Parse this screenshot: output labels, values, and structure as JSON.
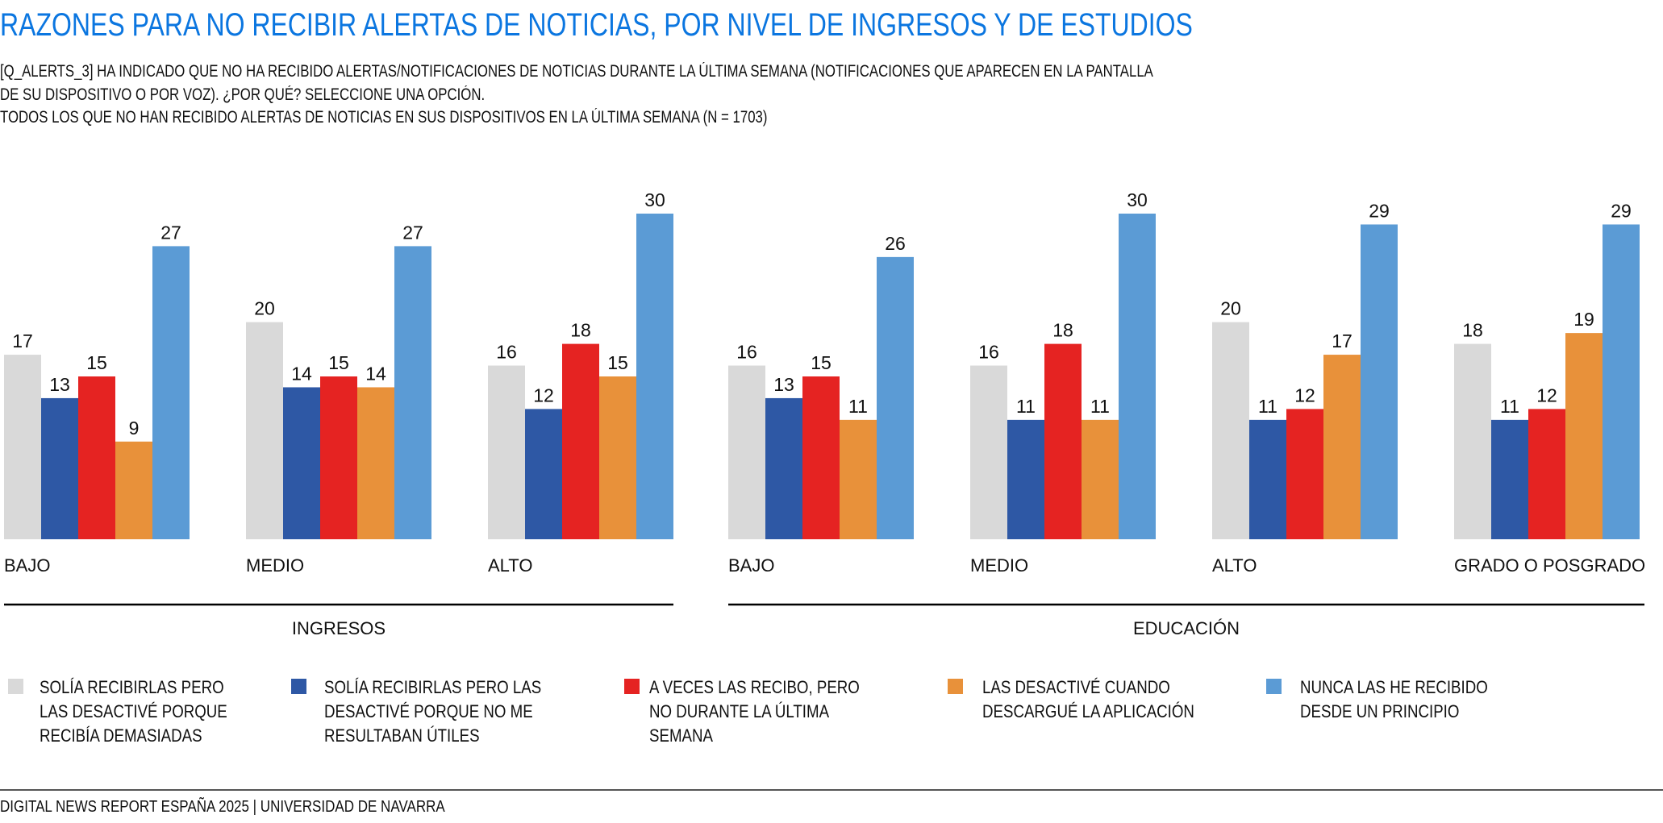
{
  "title": "RAZONES PARA NO RECIBIR ALERTAS DE NOTICIAS, POR NIVEL DE INGRESOS Y DE ESTUDIOS",
  "subtitle_lines": [
    "[Q_ALERTS_3] HA INDICADO QUE NO HA RECIBIDO ALERTAS/NOTIFICACIONES DE NOTICIAS DURANTE LA ÚLTIMA SEMANA (NOTIFICACIONES QUE APARECEN EN LA PANTALLA",
    "DE SU DISPOSITIVO O POR VOZ). ¿POR QUÉ? SELECCIONE UNA OPCIÓN.",
    "TODOS LOS QUE NO HAN RECIBIDO ALERTAS DE NOTICIAS EN SUS DISPOSITIVOS EN LA ÚLTIMA SEMANA (N = 1703)"
  ],
  "footer": "DIGITAL NEWS REPORT ESPAÑA 2025 | UNIVERSIDAD DE NAVARRA",
  "chart_data": {
    "type": "bar",
    "title": "RAZONES PARA NO RECIBIR ALERTAS DE NOTICIAS, POR NIVEL DE INGRESOS Y DE ESTUDIOS",
    "xlabel": "",
    "ylabel": "",
    "ylim": [
      0,
      30
    ],
    "grid": false,
    "legend_position": "bottom",
    "groups": [
      {
        "name": "INGRESOS",
        "categories": [
          "BAJO",
          "MEDIO",
          "ALTO"
        ]
      },
      {
        "name": "EDUCACIÓN",
        "categories": [
          "BAJO",
          "MEDIO",
          "ALTO",
          "GRADO O POSGRADO"
        ]
      }
    ],
    "categories": [
      "BAJO",
      "MEDIO",
      "ALTO",
      "BAJO",
      "MEDIO",
      "ALTO",
      "GRADO O POSGRADO"
    ],
    "series": [
      {
        "name": "SOLÍA RECIBIRLAS PERO LAS DESACTIVÉ PORQUE RECIBÍA DEMASIADAS",
        "legend_lines": [
          "SOLÍA RECIBIRLAS PERO",
          "LAS DESACTIVÉ PORQUE",
          "RECIBÍA DEMASIADAS"
        ],
        "color": "#d9d9d9",
        "values": [
          17,
          20,
          16,
          16,
          16,
          20,
          18
        ]
      },
      {
        "name": "SOLÍA RECIBIRLAS PERO LAS DESACTIVÉ PORQUE NO ME RESULTABAN ÚTILES",
        "legend_lines": [
          "SOLÍA RECIBIRLAS PERO LAS",
          "DESACTIVÉ PORQUE NO ME",
          "RESULTABAN ÚTILES"
        ],
        "color": "#2e58a5",
        "values": [
          13,
          14,
          12,
          13,
          11,
          11,
          11
        ]
      },
      {
        "name": "A VECES LAS RECIBO, PERO NO DURANTE LA ÚLTIMA SEMANA",
        "legend_lines": [
          "A VECES LAS RECIBO, PERO",
          "NO DURANTE LA ÚLTIMA",
          "SEMANA"
        ],
        "color": "#e52322",
        "values": [
          15,
          15,
          18,
          15,
          18,
          12,
          12
        ]
      },
      {
        "name": "LAS DESACTIVÉ CUANDO DESCARGUÉ LA APLICACIÓN",
        "legend_lines": [
          "LAS DESACTIVÉ CUANDO",
          "DESCARGUÉ LA APLICACIÓN"
        ],
        "color": "#e8913a",
        "values": [
          9,
          14,
          15,
          11,
          11,
          17,
          19
        ]
      },
      {
        "name": "NUNCA LAS HE RECIBIDO DESDE UN PRINCIPIO",
        "legend_lines": [
          "NUNCA LAS HE RECIBIDO",
          "DESDE UN PRINCIPIO"
        ],
        "color": "#5b9bd5",
        "values": [
          27,
          27,
          30,
          26,
          30,
          29,
          29
        ]
      }
    ]
  },
  "colors": {
    "title": "#0b76e0",
    "text": "#111111",
    "rule": "#000000",
    "footer_rule": "#555555"
  }
}
